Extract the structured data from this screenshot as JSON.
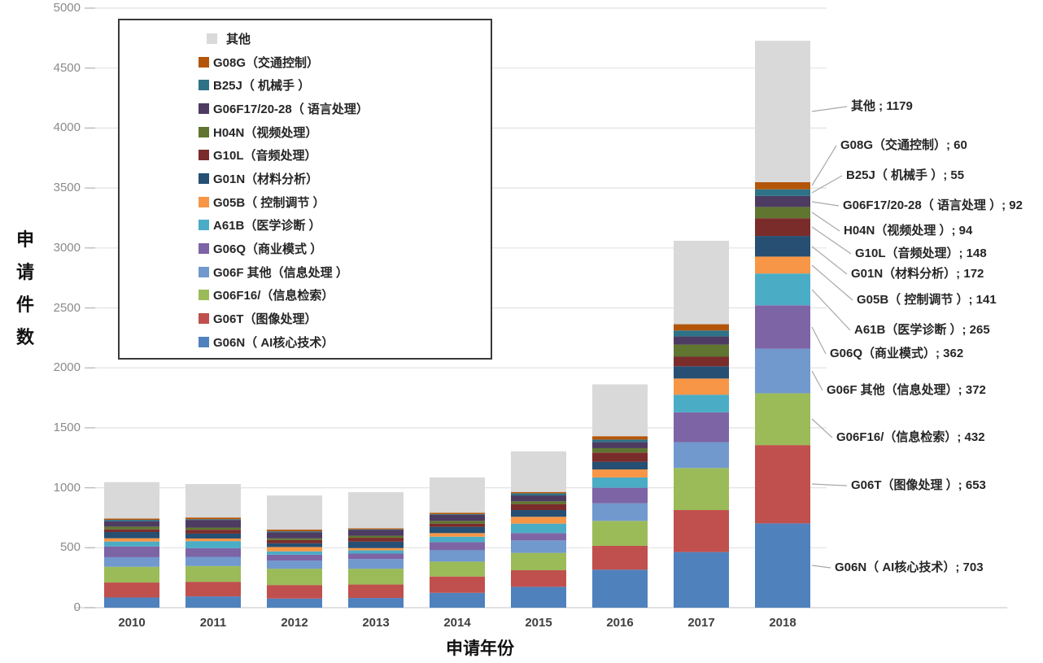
{
  "chart_data": {
    "type": "bar",
    "stacked": true,
    "title": "",
    "xlabel": "申请年份",
    "ylabel": "申请件数",
    "ylim": [
      0,
      5000
    ],
    "ytick_step": 500,
    "grid": true,
    "legend_position": "top-left-box",
    "categories": [
      "2010",
      "2011",
      "2012",
      "2013",
      "2014",
      "2015",
      "2016",
      "2017",
      "2018"
    ],
    "series": [
      {
        "name": "G06N（ AI核心技术）",
        "color": "#4F81BD",
        "values": [
          85,
          94,
          76,
          81,
          124,
          174,
          317,
          464,
          703
        ]
      },
      {
        "name": "G06T（图像处理）",
        "color": "#C0504D",
        "values": [
          125,
          122,
          113,
          112,
          136,
          138,
          199,
          350,
          653
        ]
      },
      {
        "name": "G06F16/（信息检索）",
        "color": "#9BBB59",
        "values": [
          131,
          131,
          136,
          132,
          124,
          145,
          208,
          351,
          432
        ]
      },
      {
        "name": "G06F 其他（信息处理 ）",
        "color": "#7199CE",
        "values": [
          80,
          77,
          68,
          81,
          95,
          104,
          147,
          215,
          372
        ]
      },
      {
        "name": "G06Q（商业模式 ）",
        "color": "#7D64A5",
        "values": [
          90,
          72,
          49,
          45,
          68,
          61,
          129,
          249,
          362
        ]
      },
      {
        "name": "A61B（医学诊断 ）",
        "color": "#4BACC6",
        "values": [
          41,
          59,
          28,
          27,
          45,
          79,
          86,
          147,
          265
        ]
      },
      {
        "name": "G05B（ 控制调节 ）",
        "color": "#F79646",
        "values": [
          27,
          22,
          36,
          19,
          30,
          57,
          67,
          135,
          141
        ]
      },
      {
        "name": "G01N（材料分析）",
        "color": "#264F73",
        "values": [
          52,
          41,
          31,
          54,
          52,
          56,
          64,
          102,
          172
        ]
      },
      {
        "name": "G10L（音频处理）",
        "color": "#7A2C2B",
        "values": [
          22,
          32,
          27,
          32,
          27,
          50,
          77,
          80,
          148
        ]
      },
      {
        "name": "H04N（视频处理）",
        "color": "#5F7530",
        "values": [
          23,
          18,
          14,
          17,
          23,
          23,
          36,
          101,
          94
        ]
      },
      {
        "name": "G06F17/20-28（ 语言处理）",
        "color": "#4E3B62",
        "values": [
          45,
          64,
          50,
          48,
          50,
          49,
          50,
          68,
          92
        ]
      },
      {
        "name": "B25J（ 机械手 ）",
        "color": "#2E7287",
        "values": [
          12,
          6,
          9,
          5,
          6,
          18,
          22,
          50,
          55
        ]
      },
      {
        "name": "G08G（交通控制）",
        "color": "#B4560A",
        "values": [
          11,
          14,
          14,
          9,
          12,
          11,
          28,
          52,
          60
        ]
      },
      {
        "name": "其他",
        "color": "#D9D9D9",
        "values": [
          303,
          279,
          285,
          301,
          294,
          339,
          432,
          696,
          1179
        ]
      }
    ],
    "legend_items_top_to_bottom": [
      {
        "label": "其他",
        "color": "#D9D9D9"
      },
      {
        "label": "G08G（交通控制）",
        "color": "#B4560A"
      },
      {
        "label": "B25J（ 机械手 ）",
        "color": "#2E7287"
      },
      {
        "label": "G06F17/20-28（ 语言处理）",
        "color": "#4E3B62"
      },
      {
        "label": "H04N（视频处理）",
        "color": "#5F7530"
      },
      {
        "label": "G10L（音频处理）",
        "color": "#7A2C2B"
      },
      {
        "label": "G01N（材料分析）",
        "color": "#264F73"
      },
      {
        "label": "G05B（ 控制调节 ）",
        "color": "#F79646"
      },
      {
        "label": "A61B（医学诊断 ）",
        "color": "#4BACC6"
      },
      {
        "label": "G06Q（商业模式 ）",
        "color": "#7D64A5"
      },
      {
        "label": "G06F 其他（信息处理 ）",
        "color": "#7199CE"
      },
      {
        "label": "G06F16/（信息检索）",
        "color": "#9BBB59"
      },
      {
        "label": "G06T（图像处理）",
        "color": "#C0504D"
      },
      {
        "label": "G06N（ AI核心技术）",
        "color": "#4F81BD"
      }
    ],
    "annotations_2018": [
      {
        "label": "其他 ",
        "value": 1179,
        "x": 1046,
        "y": 131,
        "line_y": 137
      },
      {
        "label": "G08G（交通控制）",
        "value": 60,
        "x": 1033,
        "y": 179,
        "line_y": 228
      },
      {
        "label": "B25J（ 机械手 ）",
        "value": 55,
        "x": 1040,
        "y": 216,
        "line_y": 237
      },
      {
        "label": "G06F17/20-28（ 语言处理 ）",
        "value": 92,
        "x": 1036,
        "y": 253,
        "line_y": 248
      },
      {
        "label": "H04N（视频处理 ）",
        "value": 94,
        "x": 1037,
        "y": 284,
        "line_y": 261
      },
      {
        "label": "G10L（音频处理）",
        "value": 148,
        "x": 1051,
        "y": 312,
        "line_y": 279
      },
      {
        "label": "G01N（材料分析）",
        "value": 172,
        "x": 1046,
        "y": 337,
        "line_y": 303
      },
      {
        "label": "G05B（ 控制调节 ）",
        "value": 141,
        "x": 1053,
        "y": 369,
        "line_y": 326
      },
      {
        "label": "A61B（医学诊断 ）",
        "value": 265,
        "x": 1050,
        "y": 406,
        "line_y": 356
      },
      {
        "label": "G06Q（商业模式）",
        "value": 362,
        "x": 1020,
        "y": 435,
        "line_y": 402
      },
      {
        "label": "G06F 其他（信息处理）",
        "value": 372,
        "x": 1016,
        "y": 480,
        "line_y": 456
      },
      {
        "label": "G06F16/（信息检索）",
        "value": 432,
        "x": 1028,
        "y": 538,
        "line_y": 515
      },
      {
        "label": "G06T（图像处理 ）",
        "value": 653,
        "x": 1046,
        "y": 597,
        "line_y": 595
      },
      {
        "label": "G06N（ AI核心技术）",
        "value": 703,
        "x": 1026,
        "y": 698,
        "line_y": 695
      }
    ],
    "colors": {
      "gridline": "#e2e2e2",
      "axis_line": "#cfcfcf",
      "tick_mark": "#b5b5b5",
      "leader_line": "#a8a8a8"
    }
  }
}
